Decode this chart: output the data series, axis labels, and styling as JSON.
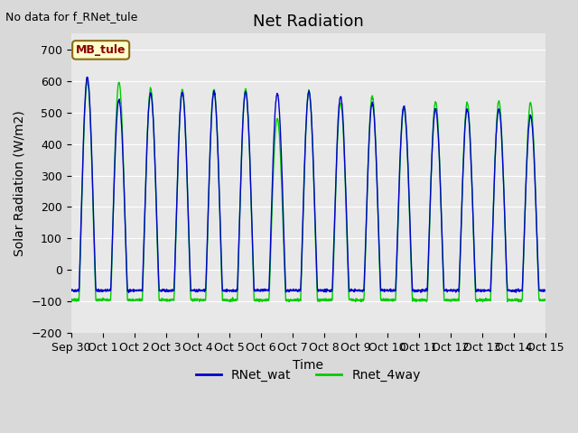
{
  "title": "Net Radiation",
  "xlabel": "Time",
  "ylabel": "Solar Radiation (W/m2)",
  "no_data_text": "No data for f_RNet_tule",
  "legend_label_text": "MB_tule",
  "ylim": [
    -200,
    750
  ],
  "yticks": [
    -200,
    -100,
    0,
    100,
    200,
    300,
    400,
    500,
    600,
    700
  ],
  "xtick_labels": [
    "Sep 30",
    "Oct 1",
    "Oct 2",
    "Oct 3",
    "Oct 4",
    "Oct 5",
    "Oct 6",
    "Oct 7",
    "Oct 8",
    "Oct 9",
    "Oct 10",
    "Oct 11",
    "Oct 12",
    "Oct 13",
    "Oct 14",
    "Oct 15"
  ],
  "color_blue": "#0000cc",
  "color_green": "#00cc00",
  "plot_bg_color": "#e8e8e8",
  "fig_bg_color": "#d9d9d9",
  "n_days": 15,
  "day_peaks_blue": [
    610,
    540,
    560,
    565,
    565,
    565,
    560,
    565,
    550,
    530,
    520,
    510,
    510,
    510,
    490
  ],
  "day_peaks_green": [
    598,
    596,
    574,
    572,
    572,
    572,
    480,
    567,
    530,
    550,
    510,
    535,
    530,
    535,
    530
  ],
  "night_val_blue": -65,
  "night_val_green": -95,
  "title_fontsize": 13,
  "axis_label_fontsize": 10,
  "tick_fontsize": 9
}
